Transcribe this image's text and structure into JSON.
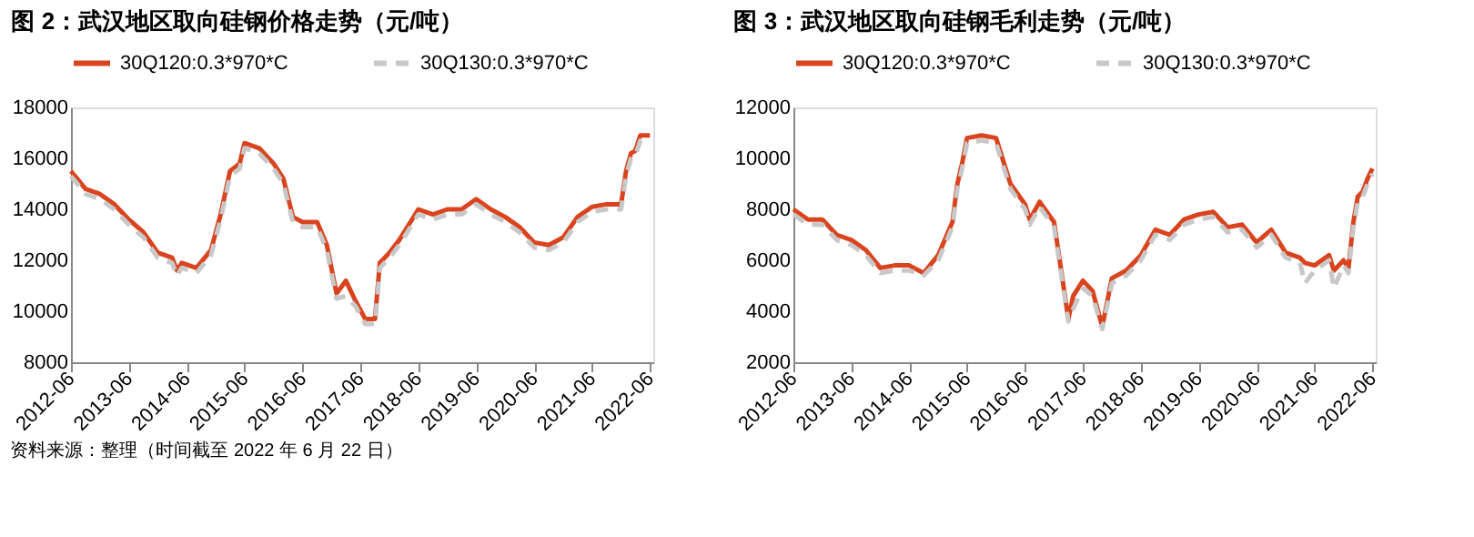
{
  "chart_data": [
    {
      "type": "line",
      "title": "图 2：武汉地区取向硅钢价格走势（元/吨）",
      "legend": "top",
      "grid": false,
      "xlim": [
        "2012-06",
        "2022-06-22"
      ],
      "xticks": [
        "2012-06",
        "2013-06",
        "2014-06",
        "2015-06",
        "2016-06",
        "2017-06",
        "2018-06",
        "2019-06",
        "2020-06",
        "2021-06",
        "2022-06"
      ],
      "ylim": [
        8000,
        18000
      ],
      "yticks": [
        8000,
        10000,
        12000,
        14000,
        16000,
        18000
      ],
      "annotations": [
        "资料来源：整理（时间截至 2022 年 6 月 22 日）"
      ],
      "x": [
        "2012-06",
        "2012-09",
        "2012-12",
        "2013-03",
        "2013-06",
        "2013-09",
        "2013-12",
        "2014-03",
        "2014-04",
        "2014-05",
        "2014-08",
        "2014-11",
        "2015-01",
        "2015-03",
        "2015-05",
        "2015-06",
        "2015-09",
        "2015-12",
        "2016-02",
        "2016-04",
        "2016-06",
        "2016-09",
        "2016-11",
        "2017-01",
        "2017-03",
        "2017-05",
        "2017-07",
        "2017-09",
        "2017-10",
        "2017-12",
        "2018-02",
        "2018-06",
        "2018-09",
        "2018-12",
        "2019-03",
        "2019-06",
        "2019-09",
        "2019-12",
        "2020-03",
        "2020-06",
        "2020-09",
        "2020-12",
        "2021-03",
        "2021-06",
        "2021-09",
        "2021-12",
        "2022-01",
        "2022-02",
        "2022-03",
        "2022-04",
        "2022-06"
      ],
      "series": [
        {
          "name": "30Q120:0.3*970*C",
          "color": "#d9441f",
          "line_style": "solid",
          "values": [
            15500,
            14800,
            14600,
            14200,
            13600,
            13100,
            12300,
            12100,
            11600,
            11900,
            11700,
            12400,
            13800,
            15500,
            15800,
            16600,
            16400,
            15800,
            15200,
            13700,
            13500,
            13500,
            12600,
            10700,
            11200,
            10400,
            9700,
            9700,
            11900,
            12300,
            12800,
            14000,
            13800,
            14000,
            14000,
            14400,
            14000,
            13700,
            13300,
            12700,
            12600,
            12900,
            13700,
            14100,
            14200,
            14200,
            15500,
            16200,
            16300,
            16900,
            16900
          ]
        },
        {
          "name": "30Q130:0.3*970*C",
          "color": "#c8c8c8",
          "line_style": "dashed",
          "values": [
            15300,
            14600,
            14400,
            14000,
            13400,
            12900,
            12100,
            11900,
            11400,
            11700,
            11500,
            12200,
            13600,
            15300,
            15600,
            16400,
            16200,
            15600,
            15000,
            13500,
            13300,
            13300,
            12400,
            10500,
            10600,
            10200,
            9500,
            9500,
            11700,
            12100,
            12600,
            13800,
            13600,
            13800,
            13800,
            14200,
            13800,
            13500,
            13100,
            12500,
            12400,
            12700,
            13500,
            13900,
            14000,
            14000,
            15300,
            16000,
            16100,
            16700,
            16700
          ]
        }
      ]
    },
    {
      "type": "line",
      "title": "图 3：武汉地区取向硅钢毛利走势（元/吨）",
      "legend": "top",
      "grid": false,
      "xlim": [
        "2012-06",
        "2022-06-22"
      ],
      "xticks": [
        "2012-06",
        "2013-06",
        "2014-06",
        "2015-06",
        "2016-06",
        "2017-06",
        "2018-06",
        "2019-06",
        "2020-06",
        "2021-06",
        "2022-06"
      ],
      "ylim": [
        2000,
        12000
      ],
      "yticks": [
        2000,
        4000,
        6000,
        8000,
        10000,
        12000
      ],
      "x": [
        "2012-06",
        "2012-09",
        "2012-12",
        "2013-03",
        "2013-06",
        "2013-09",
        "2013-12",
        "2014-03",
        "2014-06",
        "2014-09",
        "2014-12",
        "2015-03",
        "2015-04",
        "2015-05",
        "2015-06",
        "2015-09",
        "2015-12",
        "2016-03",
        "2016-06",
        "2016-07",
        "2016-09",
        "2016-12",
        "2017-03",
        "2017-04",
        "2017-06",
        "2017-08",
        "2017-10",
        "2017-12",
        "2018-03",
        "2018-06",
        "2018-09",
        "2018-12",
        "2019-03",
        "2019-06",
        "2019-09",
        "2019-12",
        "2020-03",
        "2020-06",
        "2020-09",
        "2020-12",
        "2021-03",
        "2021-04",
        "2021-06",
        "2021-09",
        "2021-10",
        "2021-12",
        "2022-01",
        "2022-02",
        "2022-03",
        "2022-04",
        "2022-05",
        "2022-06"
      ],
      "series": [
        {
          "name": "30Q120:0.3*970*C",
          "color": "#d9441f",
          "line_style": "solid",
          "values": [
            8000,
            7600,
            7600,
            7000,
            6800,
            6400,
            5700,
            5800,
            5800,
            5500,
            6200,
            7500,
            9000,
            9800,
            10800,
            10900,
            10800,
            9000,
            8200,
            7600,
            8300,
            7500,
            3700,
            4600,
            5200,
            4800,
            3400,
            5300,
            5600,
            6200,
            7200,
            7000,
            7600,
            7800,
            7900,
            7300,
            7400,
            6700,
            7200,
            6300,
            6100,
            5900,
            5800,
            6200,
            5600,
            6000,
            5700,
            7500,
            8500,
            8700,
            9200,
            9600
          ]
        },
        {
          "name": "30Q130:0.3*970*C",
          "color": "#c8c8c8",
          "line_style": "dashed",
          "values": [
            7800,
            7400,
            7400,
            6800,
            6600,
            6200,
            5500,
            5600,
            5600,
            5400,
            6000,
            7300,
            8800,
            9600,
            10600,
            10700,
            10600,
            8800,
            8000,
            7400,
            8100,
            7300,
            3600,
            4100,
            4900,
            4600,
            3300,
            5100,
            5400,
            6000,
            7000,
            6800,
            7400,
            7600,
            7700,
            7100,
            7200,
            6500,
            7000,
            6100,
            5900,
            5100,
            5600,
            6000,
            4900,
            5800,
            5500,
            7300,
            8300,
            8500,
            9000,
            9400
          ]
        }
      ]
    }
  ]
}
